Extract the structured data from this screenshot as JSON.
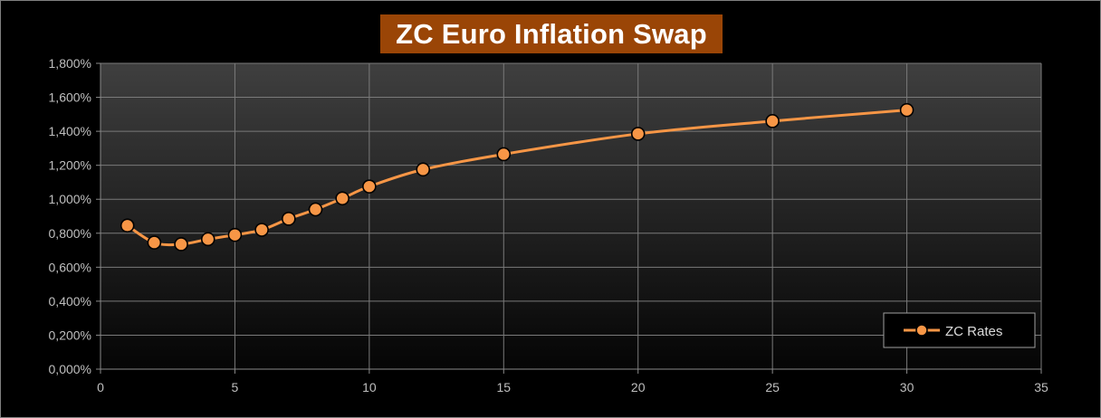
{
  "chart_data": {
    "type": "line",
    "title": "ZC Euro Inflation Swap",
    "xlabel": "",
    "ylabel": "",
    "xlim": [
      0,
      35
    ],
    "ylim": [
      0,
      1.8
    ],
    "xticks": [
      0,
      5,
      10,
      15,
      20,
      25,
      30,
      35
    ],
    "yticks": [
      0,
      0.2,
      0.4,
      0.6,
      0.8,
      1.0,
      1.2,
      1.4,
      1.6,
      1.8
    ],
    "x_tick_labels": [
      "0",
      "5",
      "10",
      "15",
      "20",
      "25",
      "30",
      "35"
    ],
    "y_tick_labels": [
      "0,000%",
      "0,200%",
      "0,400%",
      "0,600%",
      "0,800%",
      "1,000%",
      "1,200%",
      "1,400%",
      "1,600%",
      "1,800%"
    ],
    "grid": true,
    "legend_position": "bottom-right",
    "series": [
      {
        "name": "ZC Rates",
        "color": "#f79646",
        "x": [
          1,
          2,
          3,
          4,
          5,
          6,
          7,
          8,
          9,
          10,
          12,
          15,
          20,
          25,
          30
        ],
        "y": [
          0.845,
          0.745,
          0.735,
          0.765,
          0.79,
          0.82,
          0.885,
          0.94,
          1.005,
          1.075,
          1.175,
          1.265,
          1.385,
          1.46,
          1.525
        ]
      }
    ]
  },
  "colors": {
    "background": "#000000",
    "title_bg": "#9a4506",
    "plot_top": "#3f3f3f",
    "plot_bottom": "#050505",
    "line": "#f79646",
    "marker_edge": "#000000"
  }
}
